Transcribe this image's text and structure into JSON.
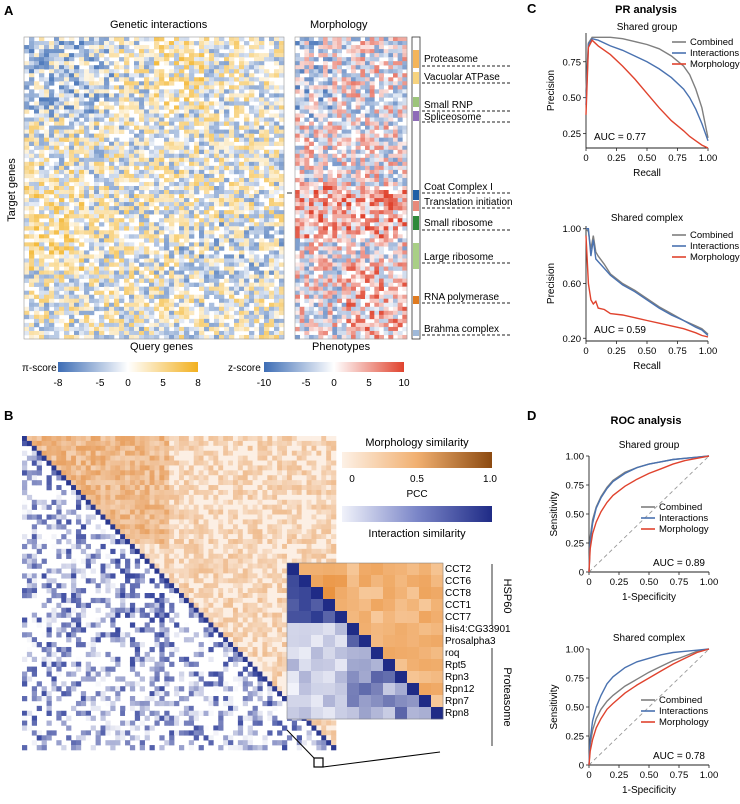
{
  "panels": {
    "A": {
      "letter": "A",
      "gi_title": "Genetic interactions",
      "morph_title": "Morphology",
      "ylabel": "Target genes",
      "xlabel_gi": "Query genes",
      "xlabel_morph": "Phenotypes",
      "complexes": [
        {
          "label": "Proteasome",
          "color": "#f4b55a"
        },
        {
          "label": "Vacuolar ATPase",
          "color": "#f7d37e"
        },
        {
          "label": "Small RNP",
          "color": "#9cc47a"
        },
        {
          "label": "Spliceosome",
          "color": "#8e6bb8"
        },
        {
          "label": "Coat Complex I",
          "color": "#1f5fa6"
        },
        {
          "label": "Translation initiation",
          "color": "#e88a7a"
        },
        {
          "label": "Small ribosome",
          "color": "#2f8a3a"
        },
        {
          "label": "Large ribosome",
          "color": "#a9cf86"
        },
        {
          "label": "RNA polymerase",
          "color": "#e07b20"
        },
        {
          "label": "Brahma complex",
          "color": "#9fb9d9"
        }
      ],
      "pi_legend": {
        "title": "π-score",
        "ticks": [
          "-8",
          "-5",
          "0",
          "5",
          "8"
        ]
      },
      "z_legend": {
        "title": "z-score",
        "ticks": [
          "-10",
          "-5",
          "0",
          "5",
          "10"
        ]
      }
    },
    "B": {
      "letter": "B",
      "morph_sim_title": "Morphology similarity",
      "pcc_ticks": [
        "0",
        "0.5",
        "1.0"
      ],
      "pcc_label": "PCC",
      "inter_sim_title": "Interaction similarity",
      "genes": [
        "CCT2",
        "CCT6",
        "CCT8",
        "CCT1",
        "CCT7",
        "His4:CG33901",
        "Prosalpha3",
        "roq",
        "Rpt5",
        "Rpn3",
        "Rpn12",
        "Rpn7",
        "Rpn8"
      ],
      "group_hsp60": "HSP60",
      "group_proteasome": "Proteasome"
    },
    "C": {
      "letter": "C",
      "title": "PR analysis"
    },
    "D": {
      "letter": "D",
      "title": "ROC analysis"
    }
  },
  "colors": {
    "combined": "#7f7f7f",
    "interactions": "#4a72b0",
    "morphology": "#e0432e",
    "orange": "#e8a040",
    "blue": "#3b4aa0"
  },
  "chart_data": [
    {
      "type": "line",
      "id": "pr-group",
      "title": "Shared group",
      "xlabel": "Recall",
      "ylabel": "Precision",
      "xlim": [
        0,
        1
      ],
      "ylim": [
        0.15,
        0.95
      ],
      "xticks": [
        "0",
        "0.25",
        "0.50",
        "0.75",
        "1.00"
      ],
      "yticks": [
        0.25,
        0.5,
        0.75
      ],
      "ytick_labels": [
        "0.25",
        "0.50",
        "0.75"
      ],
      "auc_label": "AUC = 0.77",
      "series": [
        {
          "name": "Combined",
          "x": [
            0,
            0.02,
            0.05,
            0.1,
            0.2,
            0.3,
            0.4,
            0.5,
            0.6,
            0.7,
            0.8,
            0.85,
            0.9,
            0.95,
            1.0
          ],
          "y": [
            0.55,
            0.88,
            0.92,
            0.92,
            0.92,
            0.91,
            0.89,
            0.87,
            0.84,
            0.79,
            0.72,
            0.66,
            0.56,
            0.43,
            0.22
          ]
        },
        {
          "name": "Interactions",
          "x": [
            0,
            0.02,
            0.05,
            0.1,
            0.2,
            0.3,
            0.4,
            0.5,
            0.6,
            0.7,
            0.8,
            0.85,
            0.9,
            0.95,
            1.0
          ],
          "y": [
            0.45,
            0.87,
            0.91,
            0.9,
            0.86,
            0.83,
            0.79,
            0.75,
            0.7,
            0.64,
            0.56,
            0.5,
            0.42,
            0.32,
            0.2
          ]
        },
        {
          "name": "Morphology",
          "x": [
            0,
            0.02,
            0.05,
            0.1,
            0.2,
            0.3,
            0.4,
            0.5,
            0.6,
            0.7,
            0.8,
            0.85,
            0.9,
            0.95,
            1.0
          ],
          "y": [
            0.38,
            0.85,
            0.9,
            0.86,
            0.8,
            0.72,
            0.63,
            0.53,
            0.43,
            0.34,
            0.27,
            0.23,
            0.2,
            0.17,
            0.15
          ]
        }
      ]
    },
    {
      "type": "line",
      "id": "pr-complex",
      "title": "Shared complex",
      "xlabel": "Recall",
      "ylabel": "Precision",
      "xlim": [
        0,
        1
      ],
      "ylim": [
        0.18,
        1.02
      ],
      "xticks": [
        "0",
        "0.25",
        "0.50",
        "0.75",
        "1.00"
      ],
      "yticks": [
        0.2,
        0.6,
        1.0
      ],
      "ytick_labels": [
        "0.20",
        "0.60",
        "1.00"
      ],
      "auc_label": "AUC = 0.59",
      "series": [
        {
          "name": "Combined",
          "x": [
            0,
            0.02,
            0.04,
            0.06,
            0.08,
            0.1,
            0.15,
            0.2,
            0.3,
            0.4,
            0.5,
            0.6,
            0.7,
            0.8,
            0.9,
            0.95,
            1.0
          ],
          "y": [
            1.0,
            0.98,
            0.85,
            0.95,
            0.83,
            0.8,
            0.74,
            0.67,
            0.6,
            0.55,
            0.49,
            0.43,
            0.38,
            0.33,
            0.29,
            0.27,
            0.23
          ]
        },
        {
          "name": "Interactions",
          "x": [
            0,
            0.02,
            0.04,
            0.06,
            0.08,
            0.1,
            0.15,
            0.2,
            0.3,
            0.4,
            0.5,
            0.6,
            0.7,
            0.8,
            0.9,
            0.95,
            1.0
          ],
          "y": [
            1.0,
            1.0,
            0.8,
            0.92,
            0.78,
            0.76,
            0.71,
            0.66,
            0.59,
            0.54,
            0.48,
            0.42,
            0.37,
            0.33,
            0.28,
            0.26,
            0.22
          ]
        },
        {
          "name": "Morphology",
          "x": [
            0,
            0.02,
            0.04,
            0.06,
            0.08,
            0.1,
            0.15,
            0.2,
            0.3,
            0.4,
            0.5,
            0.6,
            0.7,
            0.8,
            0.9,
            0.95,
            1.0
          ],
          "y": [
            0.95,
            0.6,
            0.48,
            0.45,
            0.47,
            0.42,
            0.41,
            0.38,
            0.37,
            0.35,
            0.33,
            0.31,
            0.29,
            0.27,
            0.24,
            0.22,
            0.21
          ]
        }
      ]
    },
    {
      "type": "line",
      "id": "roc-group",
      "title": "Shared group",
      "xlabel": "1-Specificity",
      "ylabel": "Sensitivity",
      "xlim": [
        0,
        1
      ],
      "ylim": [
        0,
        1
      ],
      "xticks": [
        "0",
        "0.25",
        "0.50",
        "0.75",
        "1.00"
      ],
      "yticks": [
        0,
        0.25,
        0.5,
        0.75,
        1.0
      ],
      "ytick_labels": [
        "0",
        "0.25",
        "0.50",
        "0.75",
        "1.00"
      ],
      "auc_label": "AUC = 0.89",
      "series": [
        {
          "name": "Combined",
          "x": [
            0,
            0.01,
            0.03,
            0.06,
            0.1,
            0.15,
            0.2,
            0.3,
            0.4,
            0.5,
            0.6,
            0.7,
            0.8,
            0.9,
            1.0
          ],
          "y": [
            0,
            0.3,
            0.45,
            0.56,
            0.65,
            0.73,
            0.79,
            0.86,
            0.9,
            0.93,
            0.95,
            0.97,
            0.98,
            0.99,
            1.0
          ]
        },
        {
          "name": "Interactions",
          "x": [
            0,
            0.01,
            0.03,
            0.06,
            0.1,
            0.15,
            0.2,
            0.3,
            0.4,
            0.5,
            0.6,
            0.7,
            0.8,
            0.9,
            1.0
          ],
          "y": [
            0,
            0.25,
            0.42,
            0.55,
            0.64,
            0.72,
            0.78,
            0.85,
            0.9,
            0.93,
            0.95,
            0.97,
            0.98,
            0.99,
            1.0
          ]
        },
        {
          "name": "Morphology",
          "x": [
            0,
            0.01,
            0.03,
            0.06,
            0.1,
            0.15,
            0.2,
            0.3,
            0.4,
            0.5,
            0.6,
            0.7,
            0.8,
            0.9,
            1.0
          ],
          "y": [
            0,
            0.2,
            0.33,
            0.43,
            0.52,
            0.6,
            0.66,
            0.74,
            0.8,
            0.85,
            0.89,
            0.93,
            0.96,
            0.98,
            1.0
          ]
        }
      ]
    },
    {
      "type": "line",
      "id": "roc-complex",
      "title": "Shared complex",
      "xlabel": "1-Specificity",
      "ylabel": "Sensitivity",
      "xlim": [
        0,
        1
      ],
      "ylim": [
        0,
        1
      ],
      "xticks": [
        "0",
        "0.25",
        "0.50",
        "0.75",
        "1.00"
      ],
      "yticks": [
        0,
        0.25,
        0.5,
        0.75,
        1.0
      ],
      "ytick_labels": [
        "0",
        "0.25",
        "0.50",
        "0.75",
        "1.00"
      ],
      "auc_label": "AUC = 0.78",
      "series": [
        {
          "name": "Combined",
          "x": [
            0,
            0.01,
            0.03,
            0.06,
            0.1,
            0.15,
            0.2,
            0.3,
            0.4,
            0.5,
            0.6,
            0.7,
            0.8,
            0.9,
            1.0
          ],
          "y": [
            0,
            0.18,
            0.3,
            0.4,
            0.48,
            0.55,
            0.6,
            0.68,
            0.74,
            0.8,
            0.85,
            0.9,
            0.94,
            0.98,
            1.0
          ]
        },
        {
          "name": "Interactions",
          "x": [
            0,
            0.01,
            0.03,
            0.06,
            0.1,
            0.15,
            0.2,
            0.3,
            0.4,
            0.5,
            0.6,
            0.7,
            0.8,
            0.9,
            1.0
          ],
          "y": [
            0,
            0.22,
            0.38,
            0.5,
            0.6,
            0.7,
            0.76,
            0.84,
            0.89,
            0.92,
            0.95,
            0.97,
            0.98,
            0.99,
            1.0
          ]
        },
        {
          "name": "Morphology",
          "x": [
            0,
            0.01,
            0.03,
            0.06,
            0.1,
            0.15,
            0.2,
            0.3,
            0.4,
            0.5,
            0.6,
            0.7,
            0.8,
            0.9,
            1.0
          ],
          "y": [
            0,
            0.12,
            0.22,
            0.32,
            0.4,
            0.48,
            0.53,
            0.62,
            0.69,
            0.75,
            0.81,
            0.87,
            0.92,
            0.97,
            1.0
          ]
        }
      ]
    }
  ]
}
